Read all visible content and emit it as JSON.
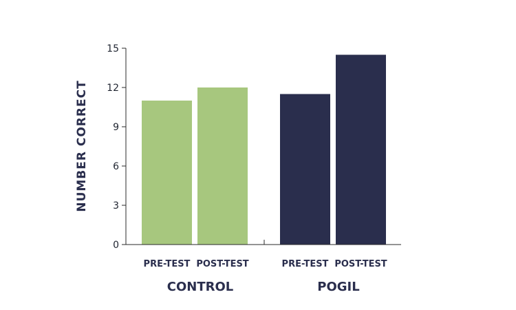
{
  "chart_data": {
    "type": "bar",
    "ylabel": "NUMBER CORRECT",
    "ylim": [
      0,
      15
    ],
    "yticks": [
      0,
      3,
      6,
      9,
      12,
      15
    ],
    "groups": [
      {
        "name": "CONTROL",
        "color": "#a7c77e",
        "bars": [
          {
            "label": "PRE-TEST",
            "value": 11
          },
          {
            "label": "POST-TEST",
            "value": 12
          }
        ]
      },
      {
        "name": "POGIL",
        "color": "#2a2e4d",
        "bars": [
          {
            "label": "PRE-TEST",
            "value": 11.5
          },
          {
            "label": "POST-TEST",
            "value": 14.5
          }
        ]
      }
    ]
  }
}
